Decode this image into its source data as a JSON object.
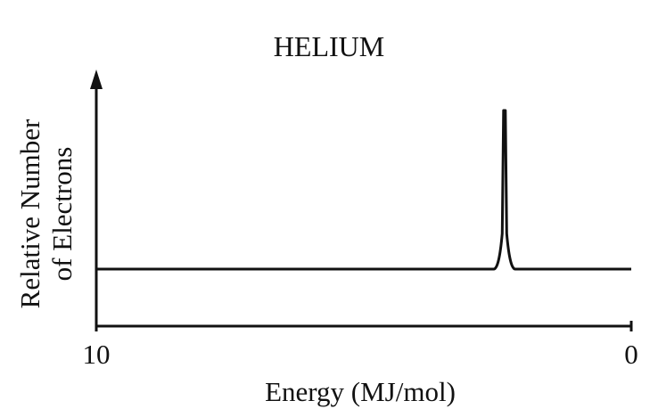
{
  "chart_data": {
    "type": "line",
    "title": "HELIUM",
    "ylabel_line1": "Relative Number",
    "ylabel_line2": "of Electrons",
    "xlabel": "Energy (MJ/mol)",
    "x_reversed": true,
    "xlim": [
      10,
      0
    ],
    "x_ticks": [
      "10",
      "0"
    ],
    "y_axis_arrow": true,
    "grid": false,
    "series": [
      {
        "peaks": [
          {
            "x": 2.37,
            "relative_height": 1.0
          }
        ]
      }
    ]
  }
}
